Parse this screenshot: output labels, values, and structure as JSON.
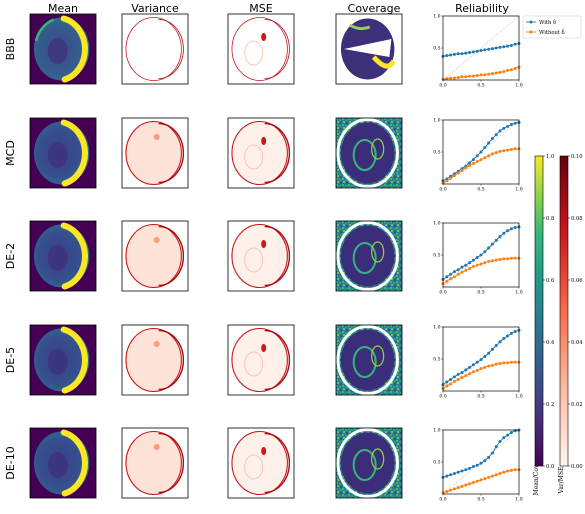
{
  "columns": [
    "Mean",
    "Variance",
    "MSE",
    "Coverage",
    "Reliability"
  ],
  "rows": [
    "BBB",
    "MCD",
    "DE-2",
    "DE-5",
    "DE-10"
  ],
  "legend": [
    "With δ",
    "Without δ"
  ],
  "colors": {
    "with": "#1f77b4",
    "without": "#ff7f0e",
    "ideal": "#8c8c8c"
  },
  "colorbars": {
    "mean_cov": {
      "label": "Mean/Cov",
      "ticks": [
        "0.0",
        "0.2",
        "0.4",
        "0.6",
        "0.8",
        "1.0"
      ]
    },
    "var_mse": {
      "label": "Var/MSE",
      "ticks": [
        "0.00",
        "0.02",
        "0.04",
        "0.06",
        "0.08",
        "0.10"
      ]
    }
  },
  "chart_data": {
    "type": "line",
    "xlim": [
      0,
      1
    ],
    "ylim": [
      0,
      1
    ],
    "xticks": [
      "0.0",
      "0.5",
      "1.0"
    ],
    "yticks": [
      "0.5",
      "1.0"
    ],
    "x": [
      0.0,
      0.05,
      0.1,
      0.15,
      0.2,
      0.25,
      0.3,
      0.35,
      0.4,
      0.45,
      0.5,
      0.55,
      0.6,
      0.65,
      0.7,
      0.75,
      0.8,
      0.85,
      0.9,
      0.95,
      1.0
    ],
    "panels": [
      {
        "row": "BBB",
        "series": [
          {
            "name": "With δ",
            "values": [
              0.37,
              0.38,
              0.39,
              0.4,
              0.41,
              0.41,
              0.42,
              0.43,
              0.44,
              0.45,
              0.46,
              0.47,
              0.48,
              0.49,
              0.5,
              0.51,
              0.52,
              0.53,
              0.54,
              0.56,
              0.57
            ]
          },
          {
            "name": "Without δ",
            "values": [
              0.01,
              0.02,
              0.03,
              0.03,
              0.04,
              0.05,
              0.05,
              0.06,
              0.06,
              0.07,
              0.08,
              0.08,
              0.09,
              0.1,
              0.11,
              0.12,
              0.13,
              0.15,
              0.16,
              0.18,
              0.2
            ]
          }
        ]
      },
      {
        "row": "MCD",
        "series": [
          {
            "name": "With δ",
            "values": [
              0.05,
              0.08,
              0.12,
              0.16,
              0.2,
              0.24,
              0.28,
              0.33,
              0.38,
              0.44,
              0.5,
              0.57,
              0.64,
              0.71,
              0.77,
              0.83,
              0.87,
              0.9,
              0.93,
              0.95,
              0.96
            ]
          },
          {
            "name": "Without δ",
            "values": [
              0.02,
              0.05,
              0.09,
              0.13,
              0.17,
              0.21,
              0.25,
              0.29,
              0.32,
              0.35,
              0.38,
              0.41,
              0.44,
              0.47,
              0.49,
              0.51,
              0.52,
              0.53,
              0.54,
              0.55,
              0.55
            ]
          }
        ]
      },
      {
        "row": "DE-2",
        "series": [
          {
            "name": "With δ",
            "values": [
              0.12,
              0.16,
              0.2,
              0.24,
              0.27,
              0.31,
              0.34,
              0.38,
              0.42,
              0.46,
              0.5,
              0.55,
              0.61,
              0.67,
              0.73,
              0.79,
              0.84,
              0.88,
              0.91,
              0.93,
              0.94
            ]
          },
          {
            "name": "Without δ",
            "values": [
              0.05,
              0.09,
              0.13,
              0.16,
              0.2,
              0.23,
              0.26,
              0.29,
              0.32,
              0.34,
              0.36,
              0.38,
              0.4,
              0.41,
              0.42,
              0.43,
              0.44,
              0.44,
              0.45,
              0.45,
              0.45
            ]
          }
        ]
      },
      {
        "row": "DE-5",
        "series": [
          {
            "name": "With δ",
            "values": [
              0.1,
              0.14,
              0.18,
              0.22,
              0.26,
              0.29,
              0.33,
              0.37,
              0.41,
              0.45,
              0.49,
              0.54,
              0.59,
              0.65,
              0.71,
              0.77,
              0.82,
              0.86,
              0.9,
              0.93,
              0.95
            ]
          },
          {
            "name": "Without δ",
            "values": [
              0.04,
              0.08,
              0.11,
              0.15,
              0.18,
              0.21,
              0.24,
              0.27,
              0.3,
              0.32,
              0.35,
              0.37,
              0.39,
              0.4,
              0.42,
              0.43,
              0.44,
              0.44,
              0.45,
              0.45,
              0.45
            ]
          }
        ]
      },
      {
        "row": "DE-10",
        "series": [
          {
            "name": "With δ",
            "values": [
              0.26,
              0.28,
              0.3,
              0.32,
              0.34,
              0.36,
              0.38,
              0.4,
              0.43,
              0.45,
              0.48,
              0.52,
              0.57,
              0.64,
              0.74,
              0.82,
              0.88,
              0.92,
              0.96,
              0.99,
              1.0
            ]
          },
          {
            "name": "Without δ",
            "values": [
              0.02,
              0.04,
              0.06,
              0.08,
              0.1,
              0.12,
              0.14,
              0.16,
              0.18,
              0.2,
              0.22,
              0.24,
              0.26,
              0.28,
              0.3,
              0.32,
              0.34,
              0.36,
              0.37,
              0.38,
              0.38
            ]
          }
        ]
      }
    ]
  }
}
